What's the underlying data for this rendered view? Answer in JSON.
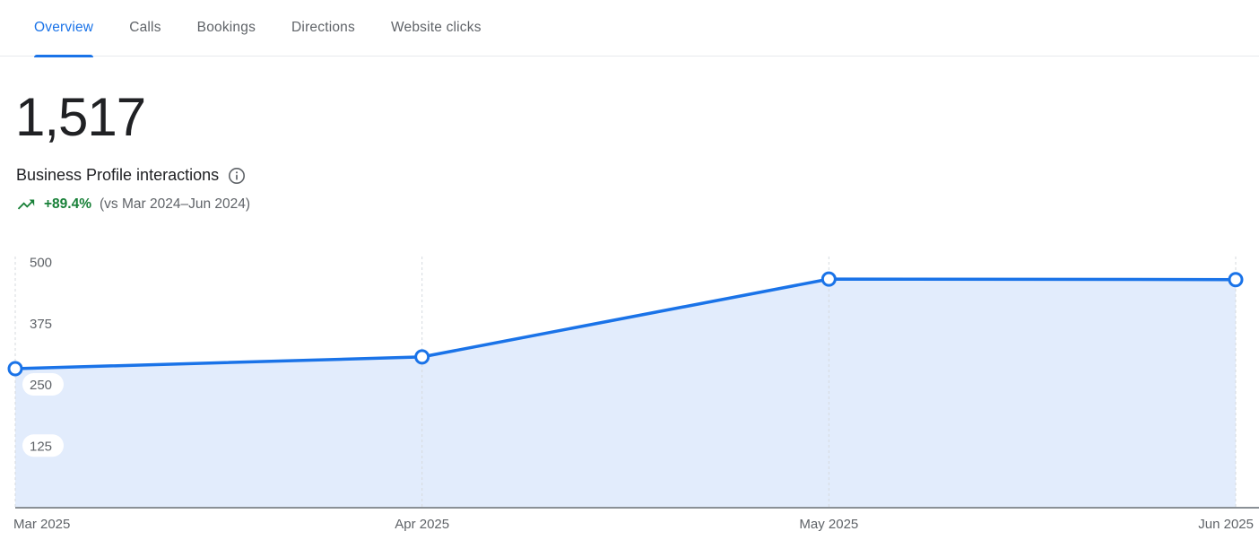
{
  "tabs": [
    {
      "label": "Overview",
      "active": true
    },
    {
      "label": "Calls",
      "active": false
    },
    {
      "label": "Bookings",
      "active": false
    },
    {
      "label": "Directions",
      "active": false
    },
    {
      "label": "Website clicks",
      "active": false
    }
  ],
  "summary": {
    "value": "1,517",
    "label": "Business Profile interactions",
    "trend_percent": "+89.4%",
    "trend_comparison": "(vs Mar 2024–Jun 2024)",
    "trend_direction": "up"
  },
  "colors": {
    "accent_blue": "#1a73e8",
    "trend_green": "#188038",
    "text_secondary": "#5f6368",
    "area_fill": "#e2ecfc",
    "gridline": "#d6dade",
    "axis_line": "#8a9096",
    "point_fill": "#ffffff"
  },
  "chart_data": {
    "type": "area",
    "title": "Business Profile interactions",
    "x": [
      "Mar 2025",
      "Apr 2025",
      "May 2025",
      "Jun 2025"
    ],
    "values": [
      282,
      306,
      465,
      464
    ],
    "xlabel": "",
    "ylabel": "",
    "ylim": [
      0,
      500
    ],
    "yticks": [
      125,
      250,
      375,
      500
    ],
    "grid": "vertical-dashed",
    "legend": "none",
    "marker": "open-circle"
  }
}
